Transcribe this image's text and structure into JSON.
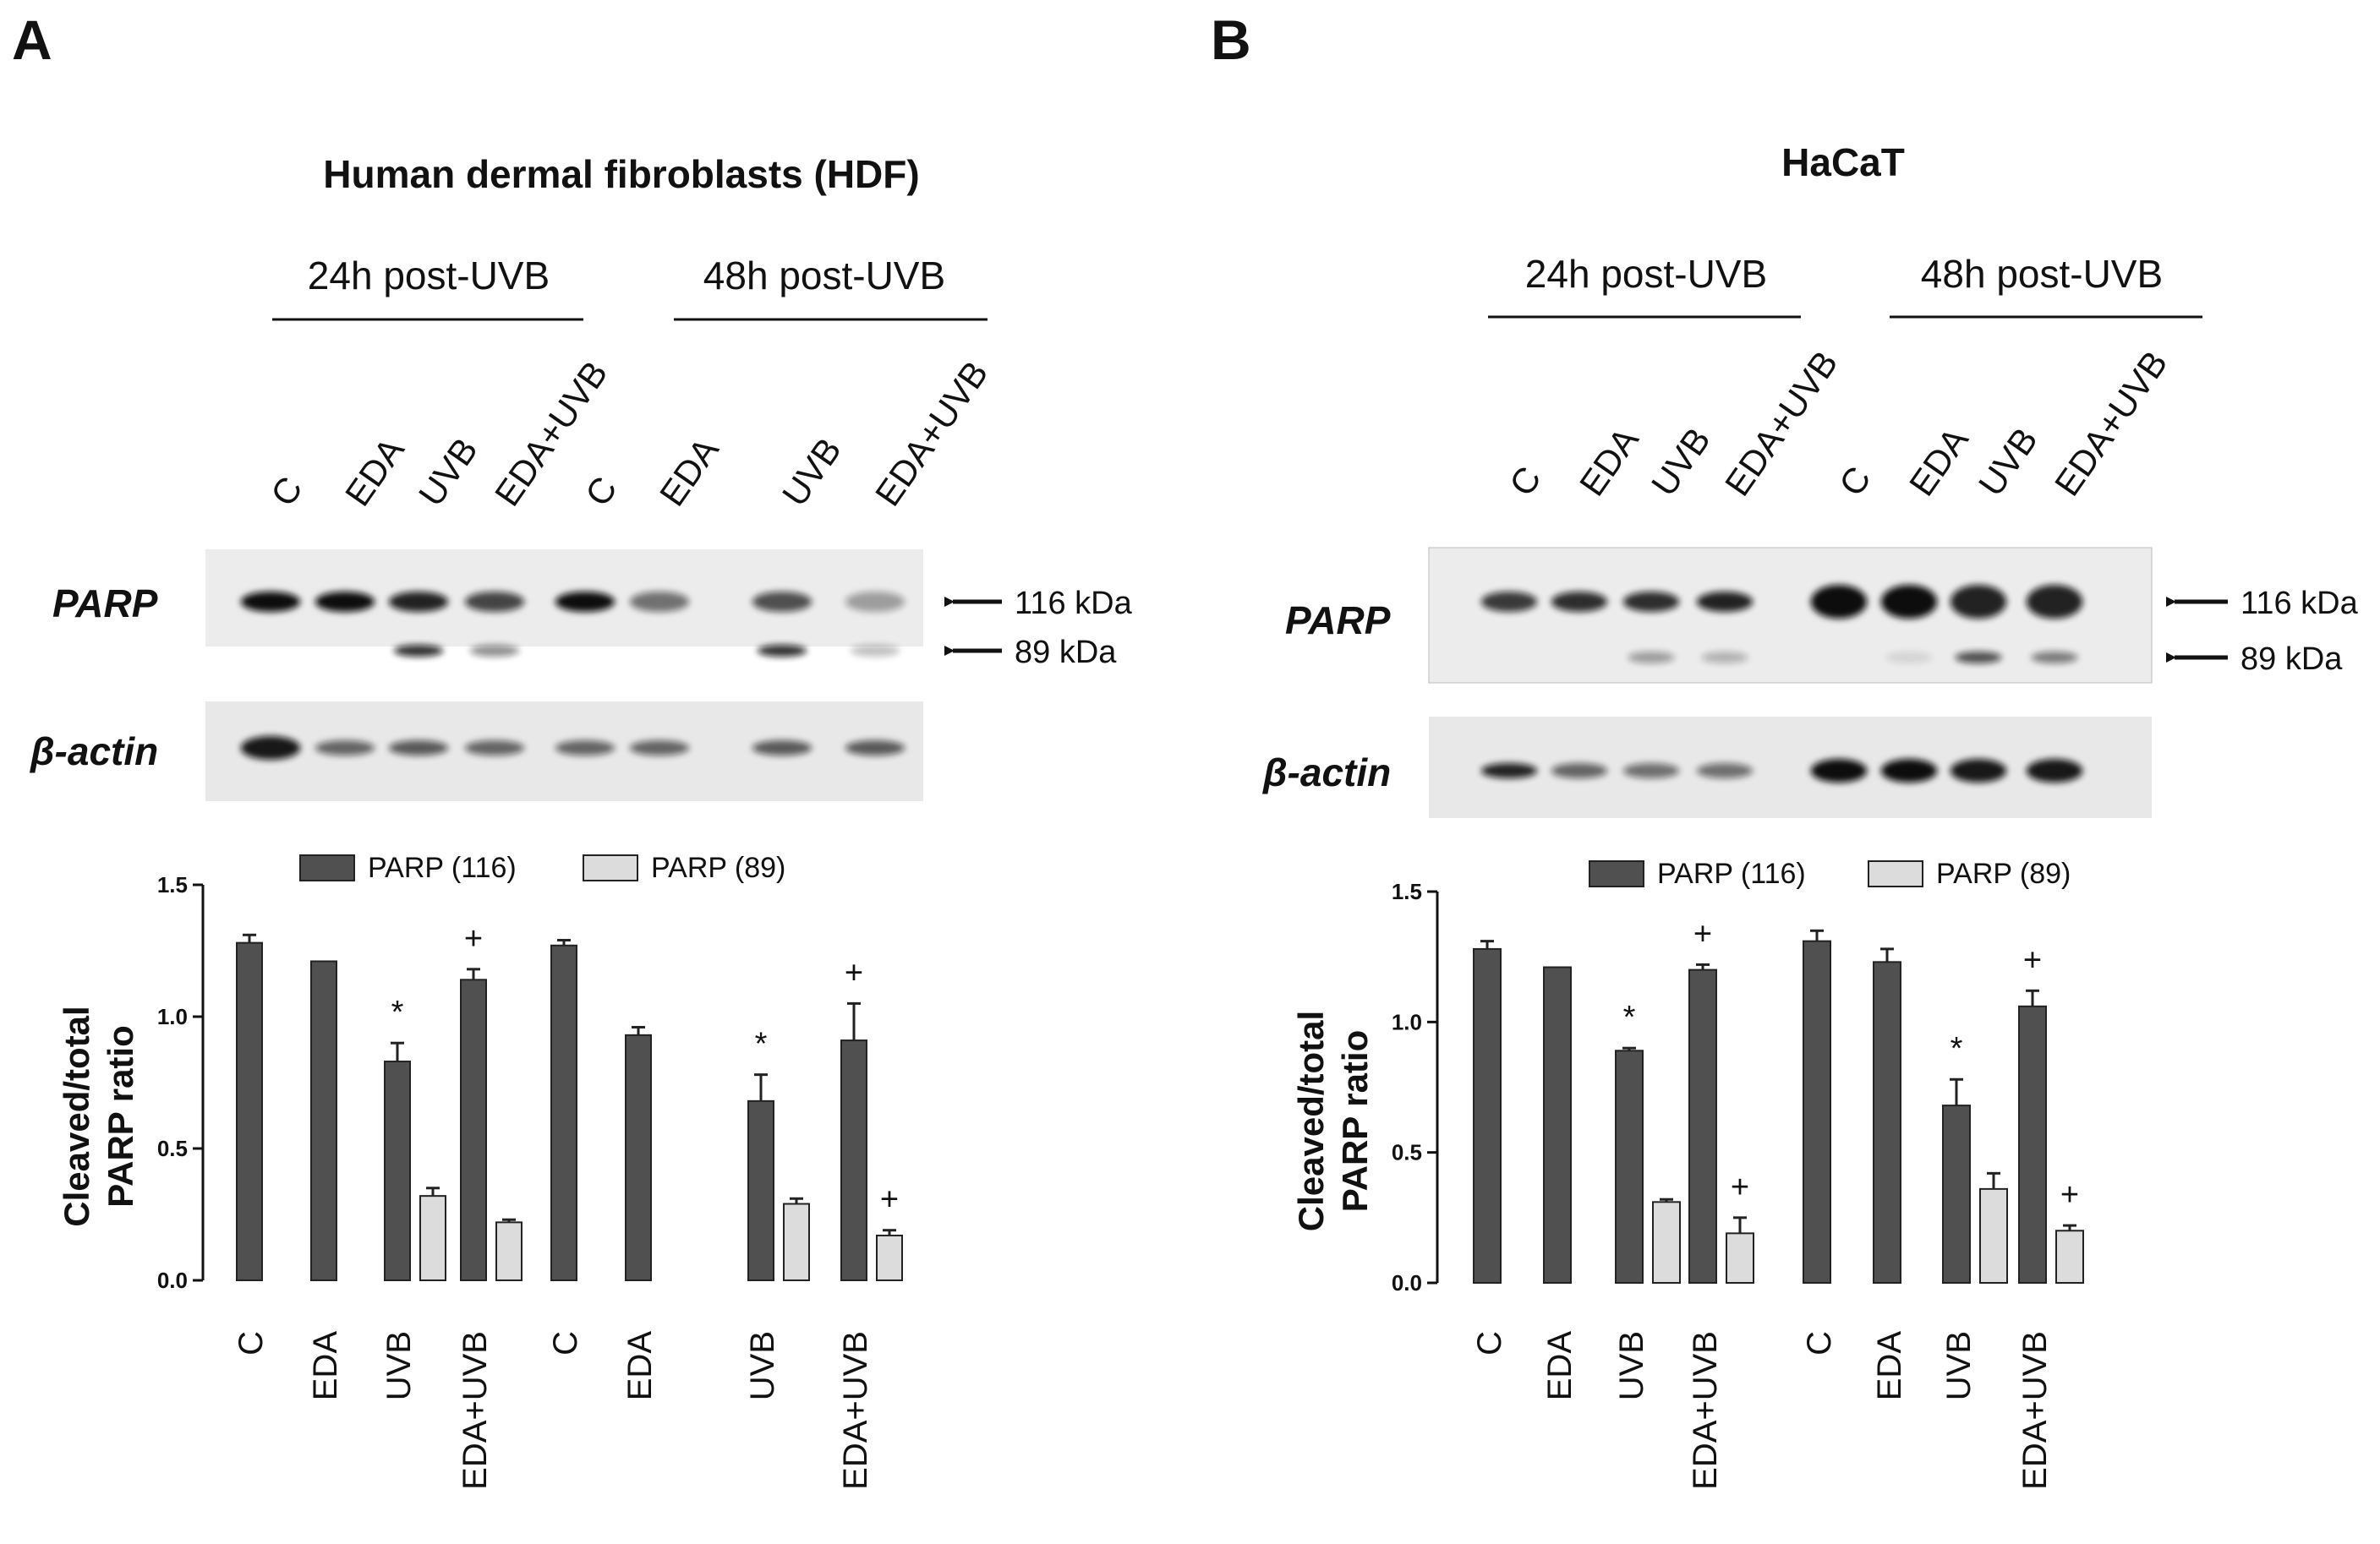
{
  "panels": [
    {
      "letter": "A",
      "title": "Human dermal fibroblasts (HDF)",
      "time_groups": [
        "24h post-UVB",
        "48h post-UVB"
      ],
      "lanes": [
        "C",
        "EDA",
        "UVB",
        "EDA+UVB",
        "C",
        "EDA",
        "UVB",
        "EDA+UVB"
      ],
      "blots": [
        {
          "label": "PARP",
          "markers": [
            "116 kDa",
            "89 kDa"
          ]
        },
        {
          "label": "β-actin"
        }
      ]
    },
    {
      "letter": "B",
      "title": "HaCaT",
      "time_groups": [
        "24h post-UVB",
        "48h post-UVB"
      ],
      "lanes": [
        "C",
        "EDA",
        "UVB",
        "EDA+UVB",
        "C",
        "EDA",
        "UVB",
        "EDA+UVB"
      ],
      "blots": [
        {
          "label": "PARP",
          "markers": [
            "116 kDa",
            "89 kDa"
          ]
        },
        {
          "label": "β-actin"
        }
      ]
    }
  ],
  "chart_data": [
    {
      "type": "bar",
      "panel": "A",
      "title": "",
      "ylabel": "Cleaved/total PARP ratio",
      "ylabel_lines": [
        "Cleaved/total",
        "PARP ratio"
      ],
      "ylim": [
        0,
        1.5
      ],
      "yticks": [
        "0.0",
        "0.5",
        "1.0",
        "1.5"
      ],
      "legend_position": "top",
      "categories": [
        "C",
        "EDA",
        "UVB",
        "EDA+UVB",
        "C",
        "EDA",
        "UVB",
        "EDA+UVB"
      ],
      "series": [
        {
          "name": "PARP (116)",
          "color": "#505050",
          "values": [
            1.28,
            1.21,
            0.83,
            1.14,
            1.27,
            0.93,
            0.68,
            0.91
          ],
          "errors": [
            0.03,
            0.0,
            0.07,
            0.04,
            0.02,
            0.03,
            0.1,
            0.14
          ],
          "annotations": [
            "",
            "",
            "*",
            "+",
            "",
            "",
            "*",
            "+"
          ]
        },
        {
          "name": "PARP (89)",
          "color": "#dcdcdc",
          "values": [
            null,
            null,
            0.32,
            0.22,
            null,
            null,
            0.29,
            0.17
          ],
          "errors": [
            0,
            0,
            0.03,
            0.01,
            0,
            0,
            0.02,
            0.02
          ],
          "annotations": [
            "",
            "",
            "",
            "",
            "",
            "",
            "",
            "+"
          ]
        }
      ]
    },
    {
      "type": "bar",
      "panel": "B",
      "title": "",
      "ylabel": "Cleaved/total PARP ratio",
      "ylabel_lines": [
        "Cleaved/total",
        "PARP ratio"
      ],
      "ylim": [
        0,
        1.5
      ],
      "yticks": [
        "0.0",
        "0.5",
        "1.0",
        "1.5"
      ],
      "legend_position": "top",
      "categories": [
        "C",
        "EDA",
        "UVB",
        "EDA+UVB",
        "C",
        "EDA",
        "UVB",
        "EDA+UVB"
      ],
      "series": [
        {
          "name": "PARP (116)",
          "color": "#505050",
          "values": [
            1.28,
            1.21,
            0.89,
            1.2,
            1.31,
            1.23,
            0.68,
            1.06
          ],
          "errors": [
            0.03,
            0.0,
            0.01,
            0.02,
            0.04,
            0.05,
            0.1,
            0.06
          ],
          "annotations": [
            "",
            "",
            "*",
            "+",
            "",
            "",
            "*",
            "+"
          ]
        },
        {
          "name": "PARP (89)",
          "color": "#dcdcdc",
          "values": [
            null,
            null,
            0.31,
            0.19,
            null,
            null,
            0.36,
            0.2
          ],
          "errors": [
            0,
            0,
            0.01,
            0.06,
            0,
            0,
            0.06,
            0.02
          ],
          "annotations": [
            "",
            "",
            "",
            "+",
            "",
            "",
            "",
            "+"
          ]
        }
      ]
    }
  ]
}
